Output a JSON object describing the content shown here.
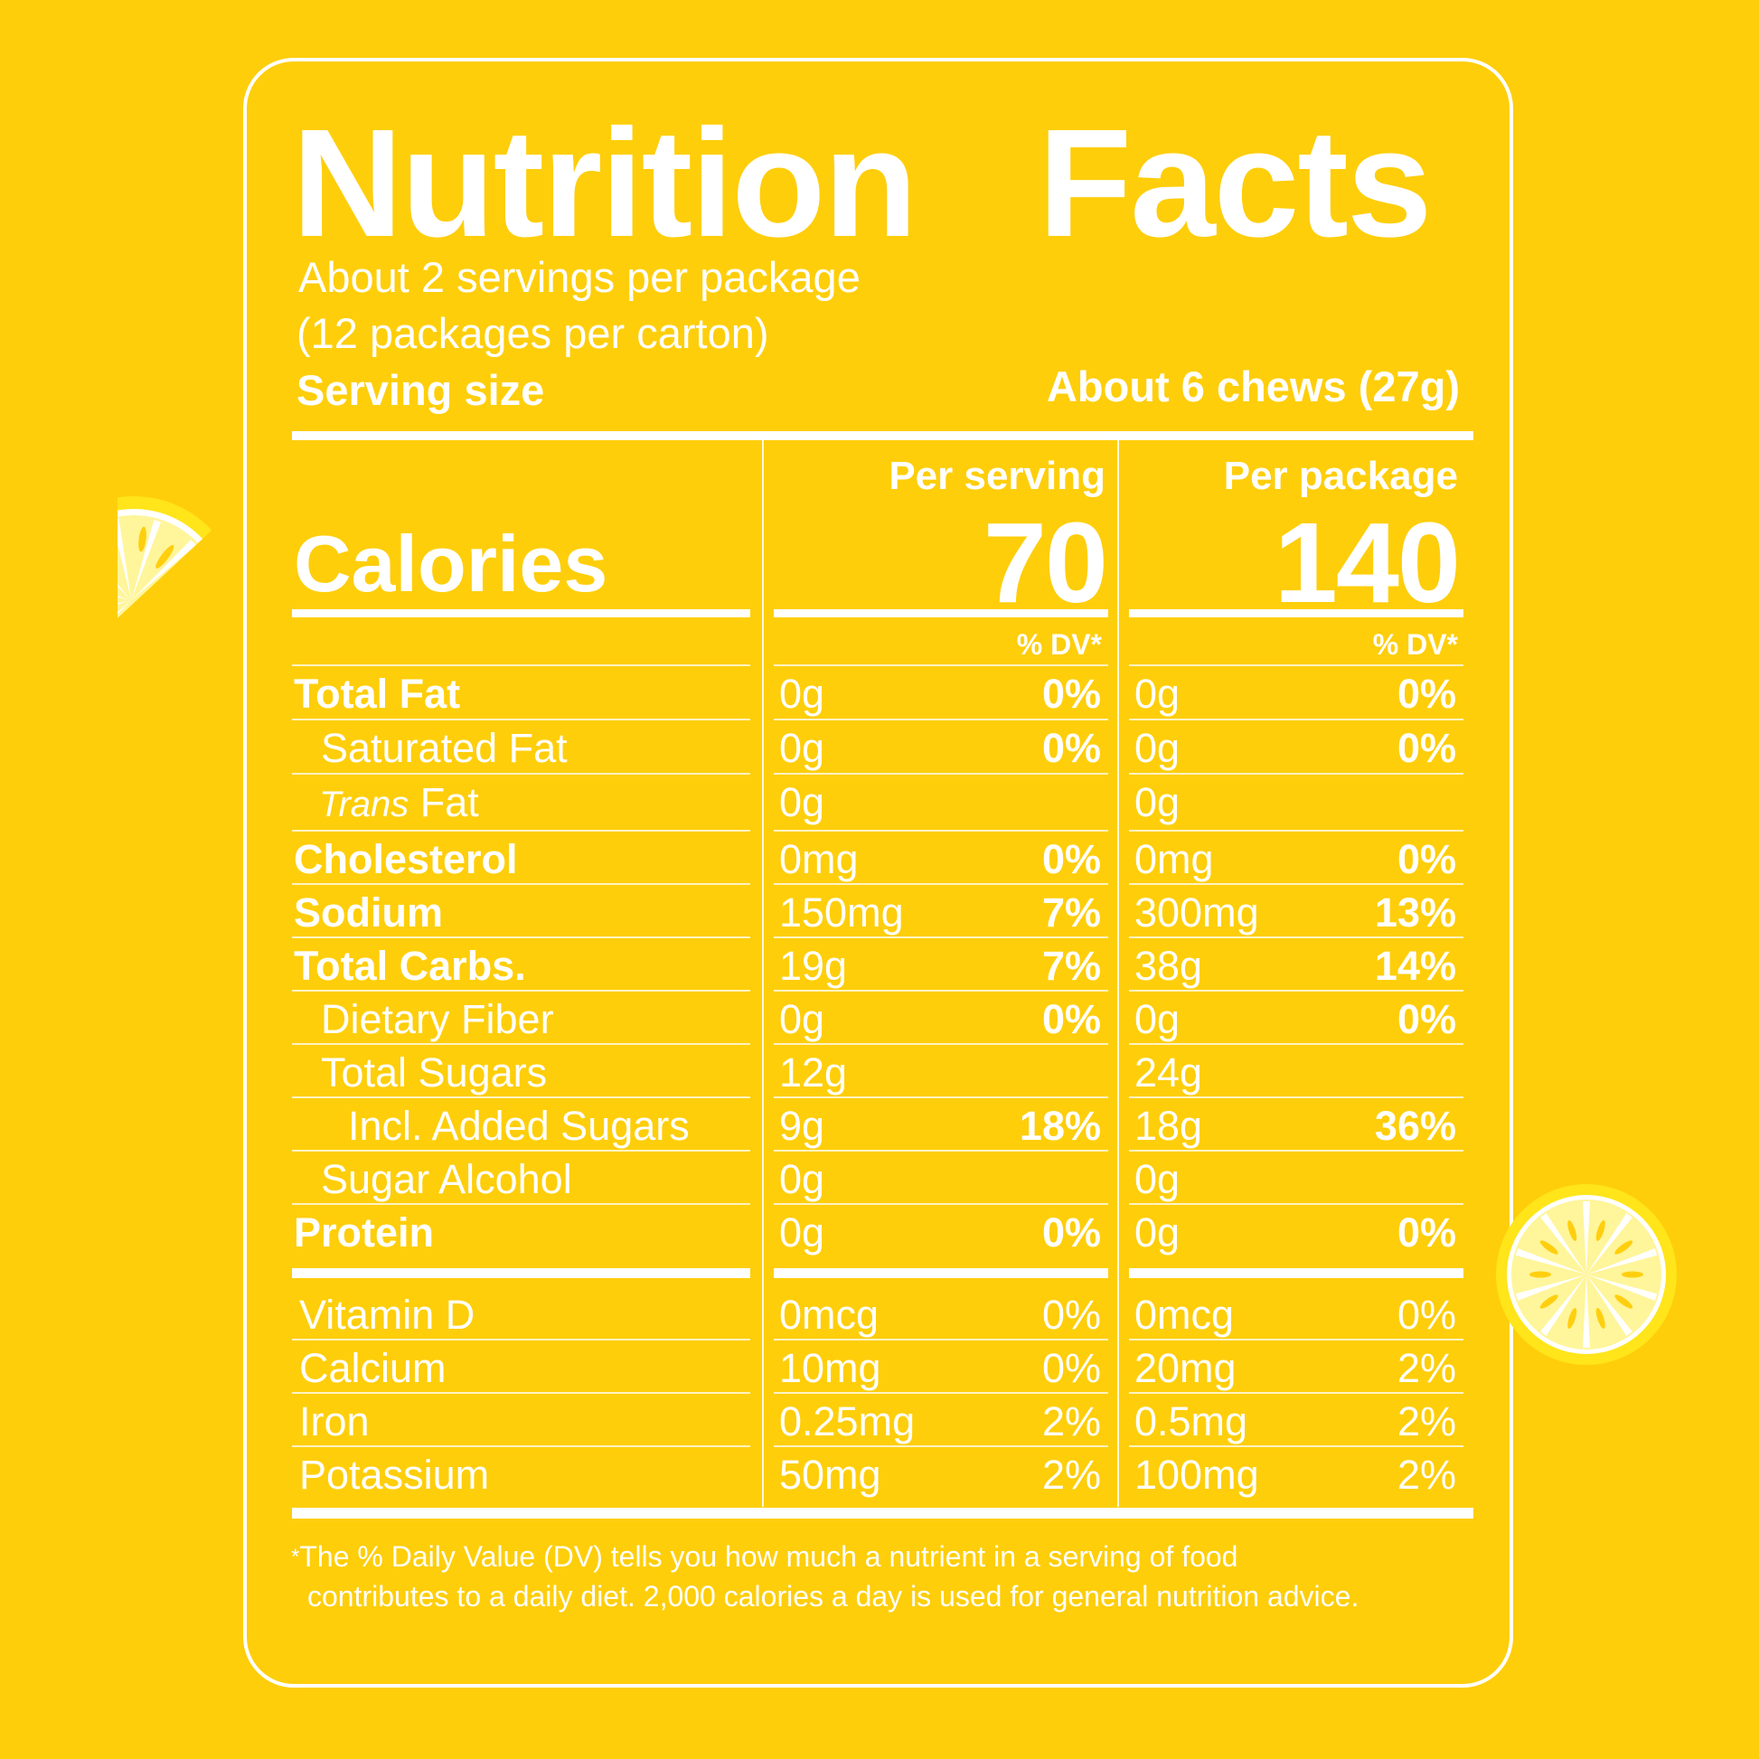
{
  "label": {
    "title": "Nutrition Facts",
    "servings_per_package": "About 2 servings per package",
    "packages_per_carton": "(12 packages per carton)",
    "serving_size_label": "Serving size",
    "serving_size_value": "About 6 chews (27g)",
    "per_serving_label": "Per serving",
    "per_package_label": "Per package",
    "calories_label": "Calories",
    "calories_per_serving": "70",
    "calories_per_package": "140",
    "dv_header": "% DV*"
  },
  "nutrients": [
    {
      "name": "Total Fat",
      "bold": true,
      "indent": 0,
      "s_amt": "0g",
      "s_dv": "0%",
      "p_amt": "0g",
      "p_dv": "0%"
    },
    {
      "name": "Saturated Fat",
      "bold": false,
      "indent": 1,
      "s_amt": "0g",
      "s_dv": "0%",
      "p_amt": "0g",
      "p_dv": "0%"
    },
    {
      "name_italic": "Trans",
      "name": " Fat",
      "bold": false,
      "indent": 1,
      "s_amt": "0g",
      "s_dv": "",
      "p_amt": "0g",
      "p_dv": ""
    },
    {
      "name": "Cholesterol",
      "bold": true,
      "indent": 0,
      "s_amt": "0mg",
      "s_dv": "0%",
      "p_amt": "0mg",
      "p_dv": "0%"
    },
    {
      "name": "Sodium",
      "bold": true,
      "indent": 0,
      "s_amt": "150mg",
      "s_dv": "7%",
      "p_amt": "300mg",
      "p_dv": "13%"
    },
    {
      "name": "Total Carbs.",
      "bold": true,
      "indent": 0,
      "s_amt": "19g",
      "s_dv": "7%",
      "p_amt": "38g",
      "p_dv": "14%"
    },
    {
      "name": "Dietary Fiber",
      "bold": false,
      "indent": 1,
      "s_amt": "0g",
      "s_dv": "0%",
      "p_amt": "0g",
      "p_dv": "0%"
    },
    {
      "name": "Total Sugars",
      "bold": false,
      "indent": 1,
      "s_amt": "12g",
      "s_dv": "",
      "p_amt": "24g",
      "p_dv": ""
    },
    {
      "name": "Incl. Added Sugars",
      "bold": false,
      "indent": 2,
      "s_amt": "9g",
      "s_dv": "18%",
      "p_amt": "18g",
      "p_dv": "36%"
    },
    {
      "name": "Sugar Alcohol",
      "bold": false,
      "indent": 1,
      "s_amt": "0g",
      "s_dv": "",
      "p_amt": "0g",
      "p_dv": ""
    },
    {
      "name": "Protein",
      "bold": true,
      "indent": 0,
      "s_amt": "0g",
      "s_dv": "0%",
      "p_amt": "0g",
      "p_dv": "0%"
    }
  ],
  "vitamins": [
    {
      "name": "Vitamin D",
      "s_amt": "0mcg",
      "s_dv": "0%",
      "p_amt": "0mcg",
      "p_dv": "0%"
    },
    {
      "name": "Calcium",
      "s_amt": "10mg",
      "s_dv": "0%",
      "p_amt": "20mg",
      "p_dv": "2%"
    },
    {
      "name": "Iron",
      "s_amt": "0.25mg",
      "s_dv": "2%",
      "p_amt": "0.5mg",
      "p_dv": "2%"
    },
    {
      "name": "Potassium",
      "s_amt": "50mg",
      "s_dv": "2%",
      "p_amt": "100mg",
      "p_dv": "2%"
    }
  ],
  "footnote": {
    "asterisk": "*",
    "line1": "The % Daily Value (DV) tells you how much a nutrient in a serving of food",
    "line2": "contributes to a daily diet. 2,000 calories a day is used for general nutrition advice."
  },
  "colors": {
    "background": "#FECE0B",
    "text": "#FFFFFF",
    "lemon_light": "#FFF59A",
    "lemon_rind": "#FFE51A"
  },
  "decorations": [
    "lemon-wedge-icon",
    "lemon-slice-icon"
  ]
}
